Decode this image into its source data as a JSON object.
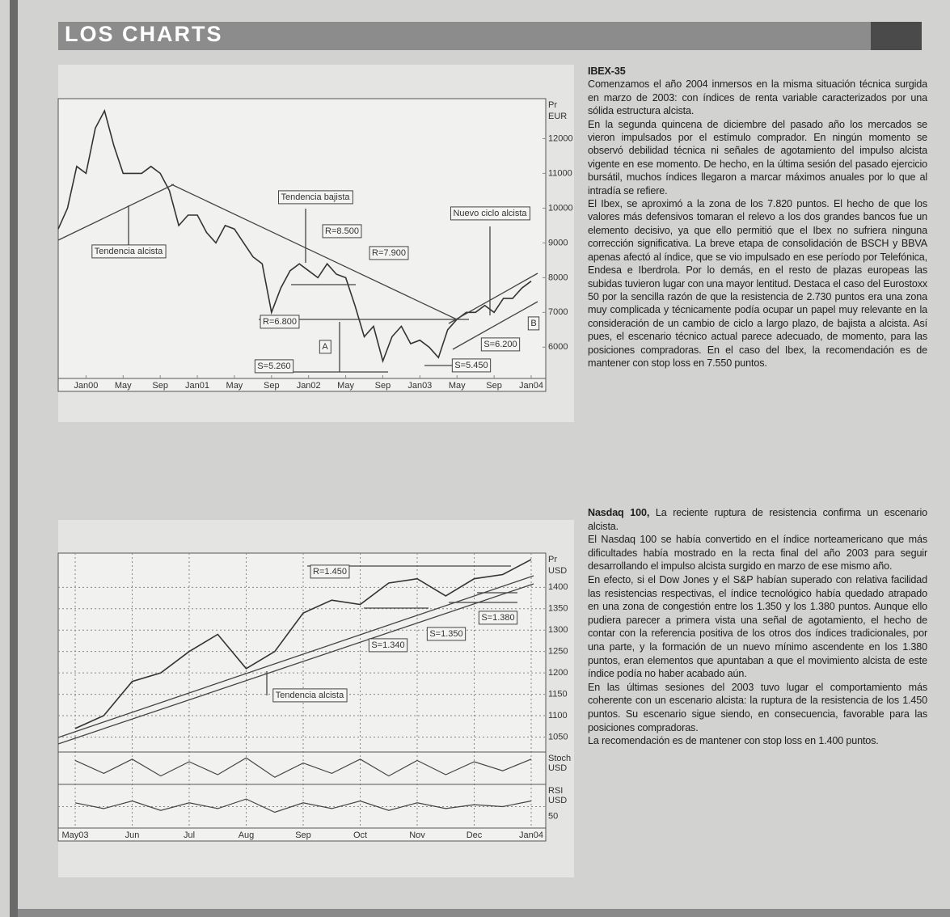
{
  "header": {
    "title": "LOS CHARTS"
  },
  "articles": [
    {
      "heading": "IBEX-35",
      "paragraphs": [
        "Comenzamos el año 2004 inmersos en la misma situación técnica surgida en marzo de 2003: con índices de renta variable caracterizados por una sólida estructura alcista.",
        "En la segunda quincena de diciembre del pasado año los mercados se vieron impulsados por el estímulo comprador. En ningún momento se observó debilidad técnica ni señales de agotamiento del impulso alcista vigente en ese momento. De hecho, en la última sesión del pasado ejercicio bursátil, muchos índices llegaron a marcar máximos anuales por lo que al intradía se refiere.",
        "El Ibex, se aproximó a la zona de los 7.820 puntos. El hecho de que los valores más defensivos tomaran el relevo a los dos grandes bancos fue un elemento decisivo, ya que ello permitió que el Ibex no sufriera ninguna corrección significativa. La breve etapa de consolidación de BSCH y BBVA apenas afectó al índice, que se vio impulsado en ese período por Telefónica, Endesa e Iberdrola. Por lo demás, en el resto de plazas europeas las subidas tuvieron lugar con una mayor lentitud. Destaca el caso del Eurostoxx 50 por la sencilla razón de que la resistencia de 2.730 puntos era una zona muy complicada y técnicamente podía ocupar un papel muy relevante en la consideración de un cambio de ciclo a largo plazo, de bajista a alcista. Así pues, el escenario técnico actual parece adecuado, de momento, para las posiciones compradoras. En el caso del Ibex, la recomendación es de mantener con stop loss en 7.550 puntos."
      ]
    },
    {
      "heading": "Nasdaq 100,",
      "lead": "La reciente ruptura de resistencia confirma un escenario alcista.",
      "paragraphs": [
        "El Nasdaq 100 se había convertido en el índice norteamericano que más dificultades había mostrado en la recta final del año 2003 para seguir desarrollando el impulso alcista surgido en marzo de ese mismo año.",
        "En efecto, si el Dow Jones y el S&P habían superado con relativa facilidad las resistencias respectivas, el índice tecnológico había quedado atrapado en una zona de congestión entre los 1.350 y los 1.380 puntos. Aunque ello pudiera parecer a primera vista una señal de agotamiento, el hecho de contar con la referencia positiva de los otros dos índices tradicionales, por una parte, y la formación de un nuevo mínimo ascendente en los 1.380 puntos, eran elementos que apuntaban a que el movimiento alcista de este índice podía no haber acabado aún.",
        "En las últimas sesiones del 2003 tuvo lugar el comportamiento más coherente con un escenario alcista: la ruptura de la resistencia de los 1.450 puntos. Su escenario sigue siendo, en consecuencia, favorable para las posiciones compradoras.",
        "La recomendación es de mantener con stop loss en 1.400 puntos."
      ]
    }
  ],
  "chart_data": [
    {
      "type": "line",
      "axis_label": "Pr",
      "unit": "EUR",
      "grid": false,
      "color": "#333333",
      "categories": [
        null,
        null,
        null,
        "Jan00",
        null,
        null,
        null,
        "May",
        null,
        null,
        null,
        "Sep",
        null,
        null,
        null,
        "Jan01",
        null,
        null,
        null,
        "May",
        null,
        null,
        null,
        "Sep",
        null,
        null,
        null,
        "Jan02",
        null,
        null,
        null,
        "May",
        null,
        null,
        null,
        "Sep",
        null,
        null,
        null,
        "Jan03",
        null,
        null,
        null,
        "May",
        null,
        null,
        null,
        "Sep",
        null,
        null,
        null,
        "Jan04",
        null
      ],
      "values": [
        9400,
        10000,
        11200,
        11000,
        12300,
        12800,
        11800,
        11000,
        11000,
        11000,
        11200,
        11000,
        10500,
        9500,
        9800,
        9800,
        9300,
        9000,
        9500,
        9400,
        9000,
        8600,
        8400,
        7000,
        7700,
        8200,
        8400,
        8200,
        8000,
        8400,
        8100,
        8000,
        7200,
        6300,
        6600,
        5600,
        6300,
        6600,
        6100,
        6200,
        6000,
        5700,
        6500,
        6800,
        7000,
        7000,
        7200,
        7000,
        7400,
        7400,
        7700,
        7900,
        null
      ],
      "ylim": [
        5100,
        13150
      ],
      "yticks": [
        6000,
        7000,
        8000,
        9000,
        10000,
        11000,
        12000
      ],
      "annotations": [
        "Tendencia alcista",
        "Tendencia bajista",
        "R=8.500",
        "R=7.900",
        "R=6.800",
        "A",
        "S=5.260",
        "Nuevo ciclo alcista",
        "S=6.200",
        "S=5.450",
        "B"
      ]
    },
    {
      "type": "line",
      "axis_label": "Pr",
      "unit": "USD",
      "grid": true,
      "color": "#333333",
      "categories": [
        "May03",
        null,
        "Jun",
        null,
        "Jul",
        null,
        "Aug",
        null,
        "Sep",
        null,
        "Oct",
        null,
        "Nov",
        null,
        "Dec",
        null,
        "Jan04"
      ],
      "values": [
        1070,
        1100,
        1180,
        1200,
        1250,
        1290,
        1210,
        1250,
        1340,
        1370,
        1360,
        1410,
        1420,
        1380,
        1420,
        1430,
        1465
      ],
      "ylim": [
        1015,
        1480
      ],
      "yticks": [
        1050,
        1100,
        1150,
        1200,
        1250,
        1300,
        1350,
        1400
      ],
      "annotations": [
        "R=1.450",
        "S=1.340",
        "S=1.350",
        "S=1.380",
        "Tendencia alcista"
      ],
      "panes": [
        {
          "name": "Stoch",
          "unit": "USD",
          "ylim": [
            0,
            100
          ],
          "values": [
            80,
            30,
            85,
            20,
            75,
            25,
            90,
            15,
            70,
            30,
            85,
            20,
            80,
            25,
            75,
            40,
            85
          ]
        },
        {
          "name": "RSI",
          "unit": "USD",
          "ylim": [
            0,
            100
          ],
          "yticks": [
            50
          ],
          "values": [
            60,
            45,
            65,
            40,
            60,
            45,
            70,
            35,
            60,
            45,
            65,
            40,
            60,
            45,
            55,
            50,
            65
          ]
        }
      ]
    }
  ]
}
